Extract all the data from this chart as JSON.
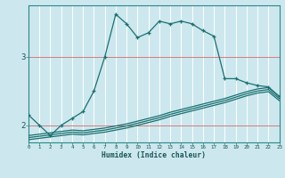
{
  "xlabel": "Humidex (Indice chaleur)",
  "background_color": "#cce8ee",
  "grid_color": "#ffffff",
  "red_line_color": "#cc6666",
  "line_color": "#1a7070",
  "xmin": 0,
  "xmax": 23,
  "ymin": 1.75,
  "ymax": 3.75,
  "yticks": [
    2,
    3
  ],
  "series1_x": [
    0,
    1,
    2,
    3,
    4,
    5,
    6,
    7,
    8,
    9,
    10,
    11,
    12,
    13,
    14,
    15,
    16,
    17,
    18,
    19,
    20,
    21,
    22,
    23
  ],
  "series1_y": [
    2.15,
    2.0,
    1.85,
    2.0,
    2.1,
    2.2,
    2.5,
    3.0,
    3.62,
    3.48,
    3.28,
    3.35,
    3.52,
    3.48,
    3.52,
    3.48,
    3.38,
    3.3,
    2.68,
    2.68,
    2.62,
    2.58,
    2.56,
    2.42
  ],
  "series2_x": [
    0,
    1,
    2,
    3,
    4,
    5,
    6,
    7,
    8,
    9,
    10,
    11,
    12,
    13,
    14,
    15,
    16,
    17,
    18,
    19,
    20,
    21,
    22,
    23
  ],
  "series2_y": [
    1.85,
    1.87,
    1.89,
    1.91,
    1.93,
    1.92,
    1.94,
    1.96,
    1.99,
    2.02,
    2.06,
    2.1,
    2.14,
    2.19,
    2.23,
    2.27,
    2.31,
    2.35,
    2.39,
    2.44,
    2.49,
    2.53,
    2.55,
    2.42
  ],
  "series3_x": [
    0,
    1,
    2,
    3,
    4,
    5,
    6,
    7,
    8,
    9,
    10,
    11,
    12,
    13,
    14,
    15,
    16,
    17,
    18,
    19,
    20,
    21,
    22,
    23
  ],
  "series3_y": [
    1.82,
    1.84,
    1.86,
    1.88,
    1.9,
    1.89,
    1.91,
    1.93,
    1.96,
    1.99,
    2.03,
    2.07,
    2.11,
    2.16,
    2.2,
    2.24,
    2.28,
    2.32,
    2.36,
    2.41,
    2.46,
    2.5,
    2.52,
    2.39
  ],
  "series4_x": [
    0,
    1,
    2,
    3,
    4,
    5,
    6,
    7,
    8,
    9,
    10,
    11,
    12,
    13,
    14,
    15,
    16,
    17,
    18,
    19,
    20,
    21,
    22,
    23
  ],
  "series4_y": [
    1.79,
    1.81,
    1.83,
    1.85,
    1.87,
    1.86,
    1.88,
    1.9,
    1.93,
    1.96,
    2.0,
    2.04,
    2.08,
    2.13,
    2.17,
    2.21,
    2.25,
    2.29,
    2.33,
    2.38,
    2.43,
    2.47,
    2.49,
    2.36
  ]
}
